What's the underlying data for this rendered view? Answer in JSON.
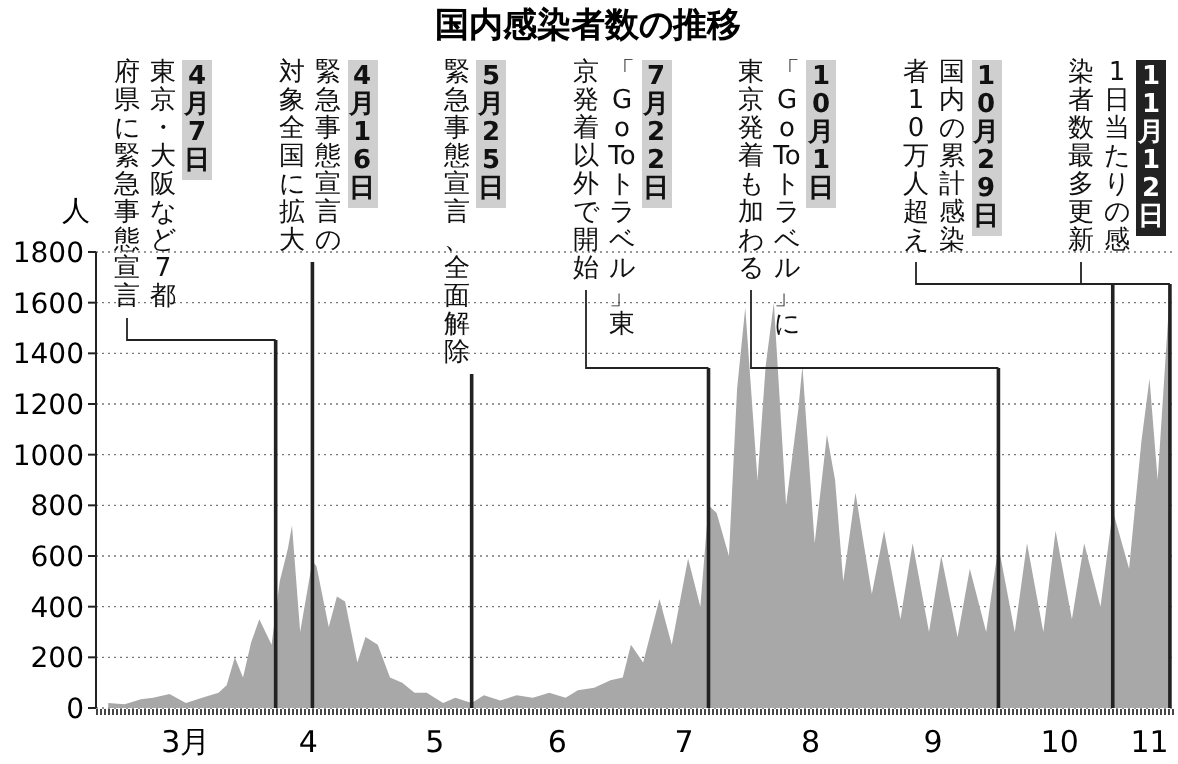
{
  "chart_data": {
    "type": "area",
    "title": "国内感染者数の推移",
    "ylabel": "人",
    "xlim": [
      "--02-23",
      "--11-13"
    ],
    "xticks": [
      {
        "value": "--03-16",
        "label": "3月"
      },
      {
        "value": "--04-15",
        "label": "4"
      },
      {
        "value": "--05-16",
        "label": "5"
      },
      {
        "value": "--06-15",
        "label": "6"
      },
      {
        "value": "--07-16",
        "label": "7"
      },
      {
        "value": "--08-16",
        "label": "8"
      },
      {
        "value": "--09-15",
        "label": "9"
      },
      {
        "value": "--10-16",
        "label": "10"
      },
      {
        "value": "--11-07",
        "label": "11"
      }
    ],
    "ylim": [
      0,
      1800
    ],
    "yticks": [
      0,
      200,
      400,
      600,
      800,
      1000,
      1200,
      1400,
      1600,
      1800
    ],
    "grid": "y",
    "x": [
      "--02-26",
      "--03-01",
      "--03-05",
      "--03-08",
      "--03-12",
      "--03-16",
      "--03-20",
      "--03-24",
      "--03-26",
      "--03-28",
      "--03-30",
      "--04-01",
      "--04-03",
      "--04-06",
      "--04-08",
      "--04-10",
      "--04-11",
      "--04-13",
      "--04-16",
      "--04-17",
      "--04-20",
      "--04-22",
      "--04-24",
      "--04-27",
      "--04-29",
      "--05-02",
      "--05-05",
      "--05-08",
      "--05-11",
      "--05-14",
      "--05-18",
      "--05-21",
      "--05-25",
      "--05-28",
      "--06-01",
      "--06-05",
      "--06-09",
      "--06-13",
      "--06-17",
      "--06-20",
      "--06-24",
      "--06-28",
      "--07-01",
      "--07-03",
      "--07-06",
      "--07-10",
      "--07-13",
      "--07-17",
      "--07-20",
      "--07-22",
      "--07-24",
      "--07-27",
      "--07-29",
      "--07-31",
      "--08-03",
      "--08-05",
      "--08-07",
      "--08-10",
      "--08-13",
      "--08-14",
      "--08-17",
      "--08-20",
      "--08-22",
      "--08-24",
      "--08-27",
      "--08-31",
      "--09-03",
      "--09-07",
      "--09-10",
      "--09-14",
      "--09-17",
      "--09-21",
      "--09-24",
      "--09-28",
      "--10-01",
      "--10-05",
      "--10-08",
      "--10-12",
      "--10-15",
      "--10-19",
      "--10-22",
      "--10-26",
      "--10-29",
      "--11-02",
      "--11-05",
      "--11-07",
      "--11-09",
      "--11-12"
    ],
    "series": [
      {
        "color": "#a8a8a8",
        "values": [
          20,
          15,
          35,
          40,
          55,
          20,
          40,
          60,
          90,
          200,
          120,
          260,
          350,
          250,
          500,
          630,
          720,
          300,
          580,
          560,
          320,
          440,
          420,
          180,
          280,
          250,
          120,
          100,
          60,
          60,
          20,
          40,
          20,
          50,
          30,
          50,
          40,
          60,
          40,
          70,
          80,
          110,
          120,
          250,
          180,
          430,
          250,
          590,
          400,
          800,
          770,
          600,
          1260,
          1580,
          900,
          1350,
          1600,
          800,
          1180,
          1350,
          650,
          1080,
          900,
          500,
          850,
          450,
          700,
          350,
          650,
          300,
          600,
          280,
          550,
          300,
          640,
          300,
          650,
          300,
          700,
          350,
          650,
          400,
          780,
          550,
          1050,
          1300,
          900,
          1650
        ]
      }
    ],
    "annotations": [
      "4月7日",
      "4月16日",
      "5月25日",
      "7月22日",
      "10月1日",
      "10月29日",
      "11月12日"
    ],
    "ref_lines": [
      {
        "axis": "x",
        "value": "--04-07",
        "label": "東京・大阪など7都府県に緊急事態宣言"
      },
      {
        "axis": "x",
        "value": "--04-16",
        "label": "緊急事態宣言の対象全国に拡大"
      },
      {
        "axis": "x",
        "value": "--05-25",
        "label": "緊急事態宣言、全面解除"
      },
      {
        "axis": "x",
        "value": "--07-22",
        "label": "「Go To トラベル」東京発着以外で開始"
      },
      {
        "axis": "x",
        "value": "--10-01",
        "label": "「Go To トラベル」に東京発着も加わる"
      },
      {
        "axis": "x",
        "value": "--10-29",
        "label": "国内の累計感染者10万人超え"
      },
      {
        "axis": "x",
        "value": "--11-12",
        "label": "1日当たりの感染者数最多更新"
      }
    ]
  }
}
